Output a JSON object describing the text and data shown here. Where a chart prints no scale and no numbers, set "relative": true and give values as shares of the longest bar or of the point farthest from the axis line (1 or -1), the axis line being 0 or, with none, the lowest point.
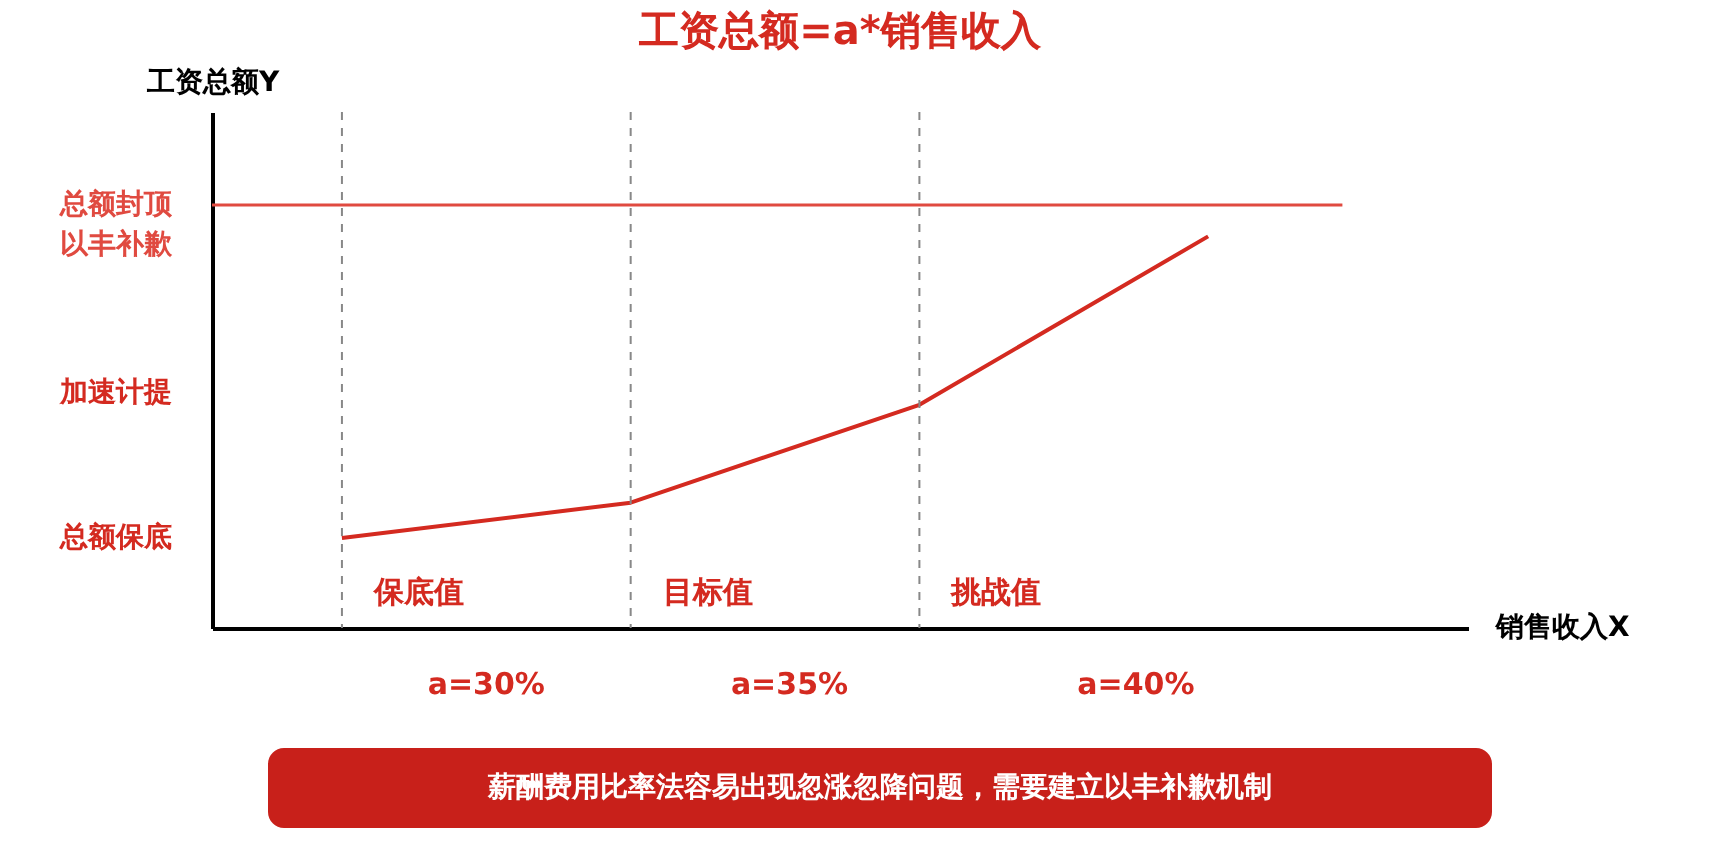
{
  "chart_data": {
    "type": "line",
    "relative": true,
    "title": "工资总额=a*销售收入",
    "ylabel": "工资总额Y",
    "xlabel": "销售收入X",
    "categories": [
      null,
      null,
      null,
      null
    ],
    "series": [
      {
        "color": "#d42a20",
        "values": [
          0.23,
          0.32,
          0.57,
          1.0
        ]
      }
    ],
    "ref_lines": [
      {
        "axis": "y",
        "value": 1.08,
        "label": "总额封顶以丰补歉",
        "color": "#e04a40"
      }
    ],
    "annotations": [
      "保底值",
      "目标值",
      "挑战值",
      "总额保底",
      "加速计提",
      "a=30%",
      "a=35%",
      "a=40%",
      "薪酬费用比率法容易出现忽涨忽降问题，需要建立以丰补歉机制"
    ],
    "grid": "x",
    "legend": false,
    "marker": "none",
    "line_style": "solid"
  }
}
